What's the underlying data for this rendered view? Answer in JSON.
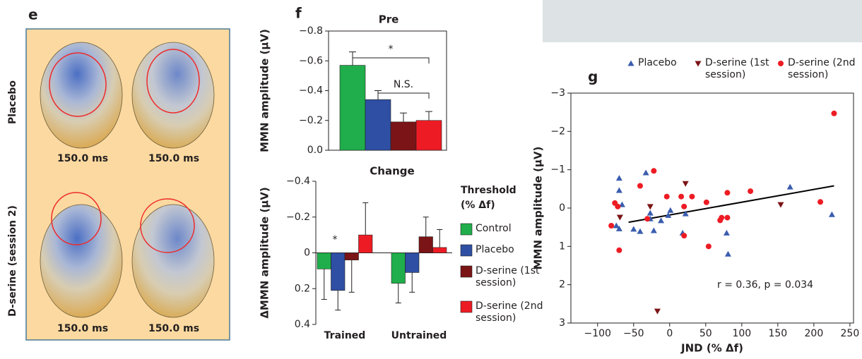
{
  "panel_e": {
    "label": "e",
    "rows": [
      "Placebo",
      "D-serine (session 2)"
    ],
    "time_labels": [
      "150.0 ms",
      "150.0 ms",
      "150.0 ms",
      "150.0 ms"
    ]
  },
  "chart_data": [
    {
      "type": "bar",
      "panel": "f",
      "title": "Pre",
      "ylabel": "MMN amplitude (μV)",
      "values": [
        -0.57,
        -0.34,
        -0.19,
        -0.2
      ],
      "errors": [
        0.09,
        0.06,
        0.06,
        0.06
      ],
      "colors": [
        "#1fae4b",
        "#2e4fa3",
        "#7b1416",
        "#ed1c24"
      ],
      "ylim": [
        0,
        -0.8
      ],
      "yticks": [
        {
          "value": 0,
          "label": "0.0"
        },
        {
          "value": -0.2,
          "label": "−0.2"
        },
        {
          "value": -0.4,
          "label": "−0.4"
        },
        {
          "value": -0.6,
          "label": "−0.6"
        },
        {
          "value": -0.8,
          "label": "−0.8"
        }
      ],
      "annotations": [
        "*",
        "N.S."
      ]
    },
    {
      "type": "grouped_bar",
      "title": "Change",
      "ylabel": "ΔMMN amplitude (μV)",
      "categories": [
        "Trained",
        "Untrained"
      ],
      "legend_title": [
        "Threshold",
        "(% Δf)"
      ],
      "series": [
        {
          "name": "Control",
          "color": "#1fae4b",
          "values": [
            0.09,
            0.17
          ],
          "errors": [
            0.17,
            0.11
          ]
        },
        {
          "name": "Placebo",
          "color": "#2e4fa3",
          "values": [
            0.21,
            0.11
          ],
          "errors": [
            0.11,
            0.11
          ]
        },
        {
          "name": "D-serine (1st session)",
          "color": "#7b1416",
          "values": [
            0.04,
            -0.09
          ],
          "errors": [
            0.18,
            0.11
          ]
        },
        {
          "name": "D-serine (2nd session)",
          "color": "#ed1c24",
          "values": [
            -0.1,
            -0.03
          ],
          "errors": [
            0.18,
            0.1
          ]
        }
      ],
      "ylim": [
        0.4,
        -0.4
      ],
      "yticks": [
        {
          "value": -0.4,
          "label": "−0.4"
        },
        {
          "value": -0.2,
          "label": "−0.2"
        },
        0,
        0.2,
        0.4
      ],
      "annotations": [
        "*"
      ]
    },
    {
      "type": "scatter",
      "panel": "g",
      "xlabel": "JND (% Δf)",
      "ylabel": "MMN amplitude (μV)",
      "series": [
        {
          "name": "Placebo",
          "color": "#3a5dae",
          "marker": "triangle-up",
          "x": [
            -70,
            -70,
            -66,
            -74,
            -70,
            -50,
            -41,
            -33,
            -27,
            -27,
            -22,
            -12,
            1,
            -2,
            18,
            22,
            81,
            79,
            167,
            225
          ],
          "y": [
            -0.78,
            -0.46,
            -0.09,
            0.46,
            0.54,
            0.55,
            0.61,
            -0.92,
            0.13,
            0.28,
            0.59,
            0.33,
            0.06,
            0.19,
            0.65,
            0.15,
            1.2,
            0.65,
            -0.55,
            0.17
          ]
        },
        {
          "name": "D-serine (1st session)",
          "color": "#7b1416",
          "marker": "triangle-down",
          "x": [
            -69,
            -27,
            22,
            -17,
            154
          ],
          "y": [
            0.24,
            -0.04,
            -0.64,
            2.69,
            -0.09
          ]
        },
        {
          "name": "D-serine (2nd session)",
          "color": "#ed1c24",
          "marker": "circle",
          "x": [
            -81,
            -76,
            -72,
            -70,
            -41,
            -31,
            -22,
            -4,
            16,
            20,
            20,
            31,
            51,
            54,
            70,
            72,
            80,
            80,
            112,
            209,
            228
          ],
          "y": [
            0.46,
            -0.13,
            -0.04,
            1.1,
            -0.58,
            0.28,
            -0.97,
            -0.3,
            -0.3,
            -0.04,
            0.72,
            -0.3,
            -0.15,
            1.0,
            0.32,
            0.25,
            -0.4,
            0.25,
            -0.44,
            -0.16,
            -2.47
          ]
        }
      ],
      "fit_line": {
        "x": [
          -57,
          228
        ],
        "y": [
          0.37,
          -0.58
        ]
      },
      "annotations": [
        "r = 0.36, p = 0.034"
      ],
      "xlim": [
        -137,
        255
      ],
      "xticks": [
        {
          "value": -100,
          "label": "−100"
        },
        {
          "value": -50,
          "label": "−50"
        },
        0,
        50,
        100,
        150,
        200,
        250
      ],
      "ylim": [
        3,
        -3
      ],
      "yticks": [
        {
          "value": -3,
          "label": "−3"
        },
        {
          "value": -2,
          "label": "−2"
        },
        {
          "value": -1,
          "label": "−1"
        },
        0,
        1,
        2,
        3
      ]
    }
  ]
}
